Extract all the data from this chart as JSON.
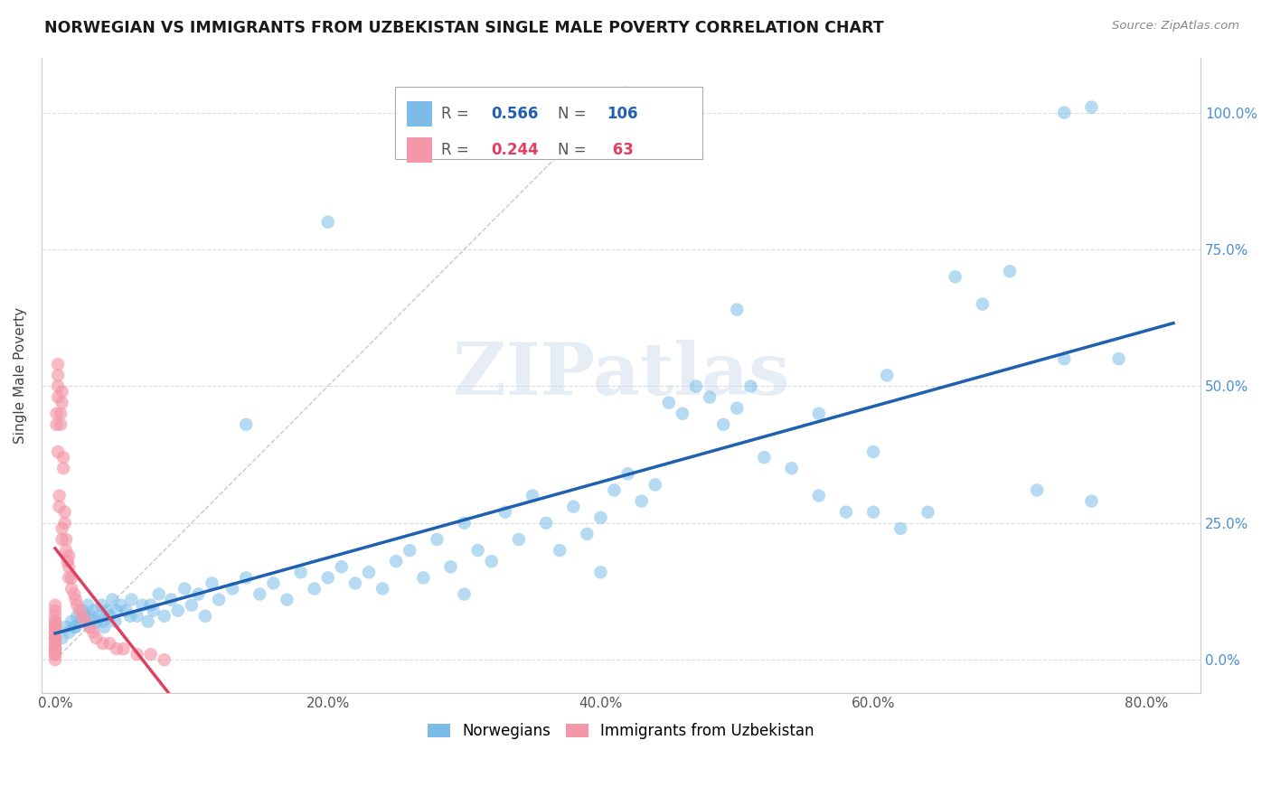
{
  "title": "NORWEGIAN VS IMMIGRANTS FROM UZBEKISTAN SINGLE MALE POVERTY CORRELATION CHART",
  "source": "Source: ZipAtlas.com",
  "xlabel_ticks": [
    "0.0%",
    "20.0%",
    "40.0%",
    "60.0%",
    "80.0%"
  ],
  "xlabel_tick_vals": [
    0.0,
    0.2,
    0.4,
    0.6,
    0.8
  ],
  "ylabel": "Single Male Poverty",
  "ylabel_ticks": [
    "0.0%",
    "25.0%",
    "50.0%",
    "75.0%",
    "100.0%"
  ],
  "ylabel_tick_vals": [
    0.0,
    0.25,
    0.5,
    0.75,
    1.0
  ],
  "xlim": [
    -0.01,
    0.84
  ],
  "ylim": [
    -0.06,
    1.1
  ],
  "blue_R": 0.566,
  "blue_N": 106,
  "pink_R": 0.244,
  "pink_N": 63,
  "blue_color": "#7bbde8",
  "pink_color": "#f497a8",
  "blue_line_color": "#2060b0",
  "pink_line_color": "#e04060",
  "ref_line_color": "#c8c8d0",
  "legend_blue_label": "Norwegians",
  "legend_pink_label": "Immigrants from Uzbekistan",
  "watermark_text": "ZIPatlas",
  "legend_R_blue": "0.566",
  "legend_N_blue": "106",
  "legend_R_pink": "0.244",
  "legend_N_pink": " 63",
  "blue_scatter_x": [
    0.005,
    0.008,
    0.01,
    0.012,
    0.014,
    0.016,
    0.018,
    0.02,
    0.022,
    0.024,
    0.026,
    0.028,
    0.03,
    0.032,
    0.034,
    0.036,
    0.038,
    0.04,
    0.042,
    0.044,
    0.048,
    0.052,
    0.056,
    0.06,
    0.064,
    0.068,
    0.072,
    0.076,
    0.08,
    0.085,
    0.09,
    0.095,
    0.1,
    0.105,
    0.11,
    0.115,
    0.12,
    0.13,
    0.14,
    0.15,
    0.16,
    0.17,
    0.18,
    0.19,
    0.2,
    0.21,
    0.22,
    0.23,
    0.24,
    0.25,
    0.26,
    0.27,
    0.28,
    0.29,
    0.3,
    0.31,
    0.32,
    0.33,
    0.34,
    0.35,
    0.36,
    0.37,
    0.38,
    0.39,
    0.4,
    0.41,
    0.42,
    0.43,
    0.44,
    0.45,
    0.46,
    0.47,
    0.48,
    0.49,
    0.5,
    0.51,
    0.52,
    0.54,
    0.56,
    0.58,
    0.6,
    0.62,
    0.64,
    0.66,
    0.68,
    0.7,
    0.72,
    0.74,
    0.76,
    0.78,
    0.015,
    0.025,
    0.035,
    0.045,
    0.055,
    0.07,
    0.14,
    0.2,
    0.3,
    0.4,
    0.5,
    0.6,
    0.74,
    0.76,
    0.56,
    0.61
  ],
  "blue_scatter_y": [
    0.04,
    0.06,
    0.05,
    0.07,
    0.06,
    0.08,
    0.07,
    0.09,
    0.08,
    0.1,
    0.06,
    0.09,
    0.07,
    0.08,
    0.1,
    0.06,
    0.09,
    0.08,
    0.11,
    0.07,
    0.1,
    0.09,
    0.11,
    0.08,
    0.1,
    0.07,
    0.09,
    0.12,
    0.08,
    0.11,
    0.09,
    0.13,
    0.1,
    0.12,
    0.08,
    0.14,
    0.11,
    0.13,
    0.15,
    0.12,
    0.14,
    0.11,
    0.16,
    0.13,
    0.15,
    0.17,
    0.14,
    0.16,
    0.13,
    0.18,
    0.2,
    0.15,
    0.22,
    0.17,
    0.25,
    0.2,
    0.18,
    0.27,
    0.22,
    0.3,
    0.25,
    0.2,
    0.28,
    0.23,
    0.26,
    0.31,
    0.34,
    0.29,
    0.32,
    0.47,
    0.45,
    0.5,
    0.48,
    0.43,
    0.46,
    0.5,
    0.37,
    0.35,
    0.3,
    0.27,
    0.27,
    0.24,
    0.27,
    0.7,
    0.65,
    0.71,
    0.31,
    0.55,
    0.29,
    0.55,
    0.06,
    0.08,
    0.07,
    0.09,
    0.08,
    0.1,
    0.43,
    0.8,
    0.12,
    0.16,
    0.64,
    0.38,
    1.0,
    1.01,
    0.45,
    0.52
  ],
  "pink_scatter_x": [
    0.0,
    0.0,
    0.0,
    0.0,
    0.0,
    0.0,
    0.0,
    0.0,
    0.0,
    0.0,
    0.0,
    0.0,
    0.0,
    0.0,
    0.0,
    0.0,
    0.0,
    0.0,
    0.0,
    0.0,
    0.002,
    0.002,
    0.002,
    0.002,
    0.003,
    0.003,
    0.004,
    0.004,
    0.005,
    0.005,
    0.005,
    0.005,
    0.006,
    0.006,
    0.007,
    0.007,
    0.008,
    0.008,
    0.009,
    0.01,
    0.01,
    0.01,
    0.012,
    0.012,
    0.014,
    0.015,
    0.016,
    0.018,
    0.02,
    0.022,
    0.025,
    0.028,
    0.03,
    0.035,
    0.04,
    0.045,
    0.05,
    0.06,
    0.07,
    0.08,
    0.001,
    0.001,
    0.002
  ],
  "pink_scatter_y": [
    0.0,
    0.01,
    0.01,
    0.02,
    0.02,
    0.02,
    0.03,
    0.03,
    0.04,
    0.04,
    0.04,
    0.05,
    0.05,
    0.06,
    0.06,
    0.07,
    0.07,
    0.08,
    0.09,
    0.1,
    0.48,
    0.5,
    0.52,
    0.54,
    0.3,
    0.28,
    0.43,
    0.45,
    0.47,
    0.49,
    0.22,
    0.24,
    0.35,
    0.37,
    0.25,
    0.27,
    0.2,
    0.22,
    0.18,
    0.15,
    0.17,
    0.19,
    0.13,
    0.15,
    0.12,
    0.11,
    0.1,
    0.09,
    0.08,
    0.07,
    0.06,
    0.05,
    0.04,
    0.03,
    0.03,
    0.02,
    0.02,
    0.01,
    0.01,
    0.0,
    0.43,
    0.45,
    0.38
  ]
}
